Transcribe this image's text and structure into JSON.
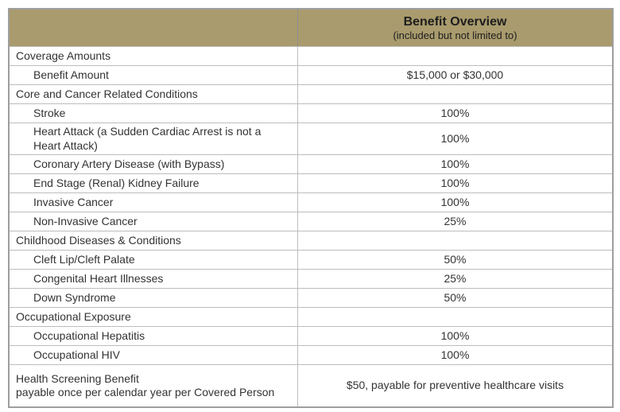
{
  "header": {
    "title": "Benefit Overview",
    "subtitle": "(included but not limited to)"
  },
  "rows": [
    {
      "type": "section",
      "label": "Coverage Amounts",
      "value": ""
    },
    {
      "type": "item",
      "label": "Benefit Amount",
      "value": "$15,000 or $30,000"
    },
    {
      "type": "section",
      "label": "Core and Cancer Related Conditions",
      "value": ""
    },
    {
      "type": "item",
      "label": "Stroke",
      "value": "100%"
    },
    {
      "type": "item",
      "label": "Heart Attack (a Sudden Cardiac Arrest is not a Heart Attack)",
      "value": "100%"
    },
    {
      "type": "item",
      "label": "Coronary Artery Disease (with Bypass)",
      "value": "100%"
    },
    {
      "type": "item",
      "label": "End Stage (Renal) Kidney Failure",
      "value": "100%"
    },
    {
      "type": "item",
      "label": "Invasive Cancer",
      "value": "100%"
    },
    {
      "type": "item",
      "label": "Non-Invasive Cancer",
      "value": "25%"
    },
    {
      "type": "section",
      "label": "Childhood Diseases & Conditions",
      "value": ""
    },
    {
      "type": "item",
      "label": "Cleft Lip/Cleft Palate",
      "value": "50%"
    },
    {
      "type": "item",
      "label": "Congenital Heart Illnesses",
      "value": "25%"
    },
    {
      "type": "item",
      "label": "Down Syndrome",
      "value": "50%"
    },
    {
      "type": "section",
      "label": "Occupational Exposure",
      "value": ""
    },
    {
      "type": "item",
      "label": "Occupational Hepatitis",
      "value": "100%"
    },
    {
      "type": "item",
      "label": "Occupational HIV",
      "value": "100%"
    },
    {
      "type": "footer",
      "label": "Health Screening Benefit\npayable once per calendar year per Covered Person",
      "value": "$50, payable for preventive healthcare visits"
    }
  ],
  "colors": {
    "header_background": "#a99b6d",
    "outer_border": "#9e9e9e",
    "inner_border": "#bdbdbd",
    "body_text": "#333333",
    "header_text": "#1d1d1d"
  }
}
